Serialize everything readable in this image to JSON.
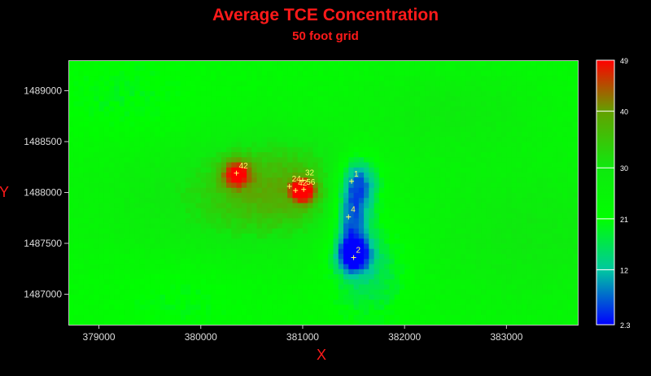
{
  "chart_data": {
    "type": "heatmap",
    "title": "Average TCE Concentration",
    "subtitle": "50 foot grid",
    "xlabel": "X",
    "ylabel": "Y",
    "xlim": [
      378700,
      383700
    ],
    "ylim": [
      1486700,
      1489300
    ],
    "x_ticks": [
      379000,
      380000,
      381000,
      382000,
      383000
    ],
    "x_tick_labels": [
      "379000",
      "380000",
      "381000",
      "382000",
      "383000"
    ],
    "y_ticks": [
      1487000,
      1487500,
      1488000,
      1488500,
      1489000
    ],
    "y_tick_labels": [
      "1487000",
      "1487500",
      "1488000",
      "1488500",
      "1489000"
    ],
    "colorbar": {
      "min": 2.3,
      "max": 49,
      "ticks": [
        2.3,
        12,
        21,
        30,
        40,
        49
      ],
      "tick_labels": [
        "2.3",
        "12",
        "21",
        "30",
        "40",
        "49"
      ],
      "colors": [
        "#0000ff",
        "#00c8a0",
        "#00ff00",
        "#0fe90f",
        "#64a000",
        "#ff0000"
      ]
    },
    "points": [
      {
        "label": "42",
        "x": 380350,
        "y": 1488190
      },
      {
        "label": "24",
        "x": 380870,
        "y": 1488060
      },
      {
        "label": "32",
        "x": 381000,
        "y": 1488120
      },
      {
        "label": "42",
        "x": 380930,
        "y": 1488020
      },
      {
        "label": "56",
        "x": 381010,
        "y": 1488030
      },
      {
        "label": "1",
        "x": 381480,
        "y": 1488110
      },
      {
        "label": "4",
        "x": 381450,
        "y": 1487760
      },
      {
        "label": "2",
        "x": 381500,
        "y": 1487360
      }
    ],
    "field_model": {
      "background": 23,
      "features": [
        {
          "x": 381000,
          "y": 1488020,
          "value": 49,
          "sx": 80,
          "sy": 80
        },
        {
          "x": 380350,
          "y": 1488190,
          "value": 43,
          "sx": 100,
          "sy": 100
        },
        {
          "x": 380800,
          "y": 1488050,
          "value": 36,
          "sx": 550,
          "sy": 350
        },
        {
          "x": 380000,
          "y": 1487900,
          "value": 29,
          "sx": 900,
          "sy": 500
        },
        {
          "x": 381550,
          "y": 1488100,
          "value": 2.5,
          "sx": 150,
          "sy": 190
        },
        {
          "x": 381480,
          "y": 1487700,
          "value": 5,
          "sx": 120,
          "sy": 250
        },
        {
          "x": 381500,
          "y": 1487380,
          "value": 3,
          "sx": 110,
          "sy": 110
        },
        {
          "x": 381650,
          "y": 1487300,
          "value": 14,
          "sx": 280,
          "sy": 380
        },
        {
          "x": 379300,
          "y": 1488900,
          "value": 19,
          "sx": 500,
          "sy": 300
        },
        {
          "x": 379800,
          "y": 1487000,
          "value": 19,
          "sx": 500,
          "sy": 250
        },
        {
          "x": 383200,
          "y": 1487600,
          "value": 30,
          "sx": 700,
          "sy": 500
        },
        {
          "x": 382500,
          "y": 1488800,
          "value": 29,
          "sx": 600,
          "sy": 300
        }
      ]
    }
  }
}
